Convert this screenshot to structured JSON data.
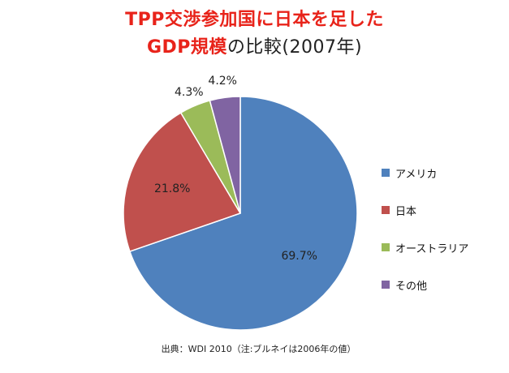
{
  "title": {
    "line1": "TPP交渉参加国に日本を足した",
    "line2_red": "GDP規模",
    "line2_rest": "の比較(2007年)"
  },
  "source_note": "出典：WDI 2010（注:ブルネイは2006年の値）",
  "chart_data": {
    "type": "pie",
    "slices": [
      {
        "label": "アメリカ",
        "value": 69.7,
        "value_label": "69.7%",
        "color": "#4f81bd"
      },
      {
        "label": "日本",
        "value": 21.8,
        "value_label": "21.8%",
        "color": "#c0504d"
      },
      {
        "label": "オーストラリア",
        "value": 4.3,
        "value_label": "4.3%",
        "color": "#9bbb59"
      },
      {
        "label": "その他",
        "value": 4.2,
        "value_label": "4.2%",
        "color": "#8064a2"
      }
    ],
    "legend_position": "right"
  }
}
